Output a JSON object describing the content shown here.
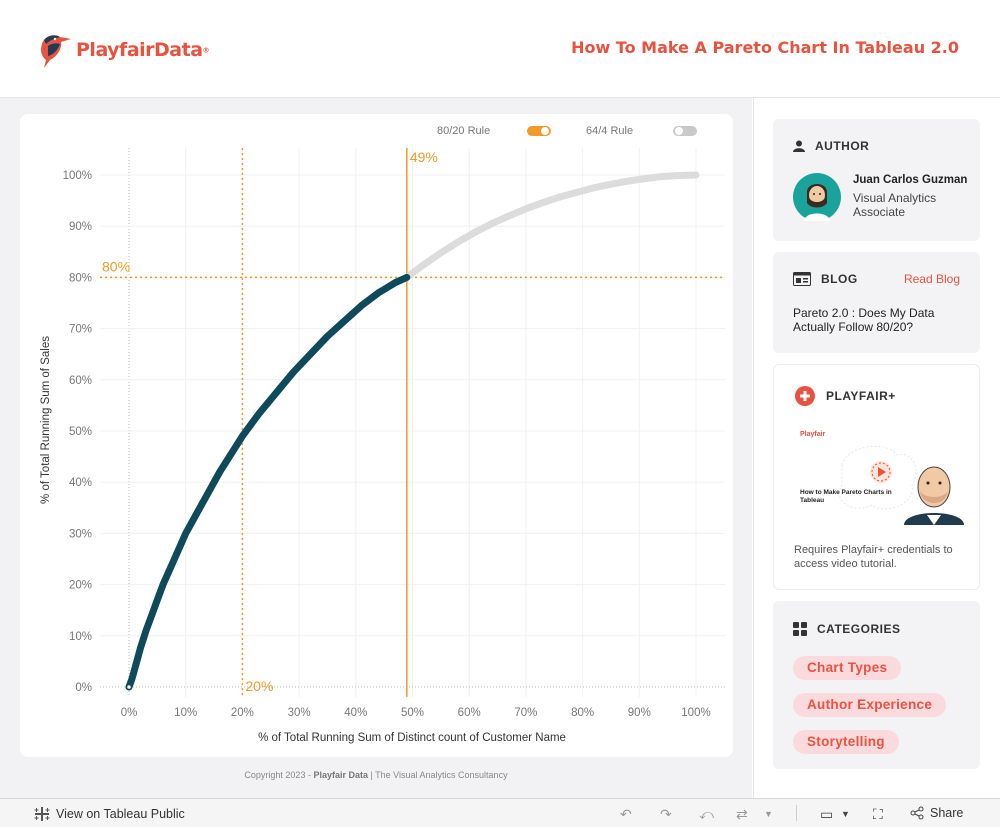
{
  "header": {
    "logo_text": "PlayfairData",
    "logo_mark": "®",
    "title": "How To Make A Pareto Chart In Tableau 2.0"
  },
  "toggles": [
    {
      "label": "80/20 Rule",
      "on": true
    },
    {
      "label": "64/4 Rule",
      "on": false
    }
  ],
  "colors": {
    "accent": "#e8533f",
    "orange": "#f39a26",
    "curve": "#0f4a5a",
    "curve_muted": "#dcdcdc",
    "pill_bg": "#fadadc"
  },
  "chart_data": {
    "type": "line",
    "xlabel": "% of Total Running Sum of Distinct count of Customer Name",
    "ylabel": "% of Total Running Sum of Sales",
    "xlim": [
      0,
      100
    ],
    "ylim": [
      0,
      100
    ],
    "x_ticks": [
      "0%",
      "10%",
      "20%",
      "30%",
      "40%",
      "50%",
      "60%",
      "70%",
      "80%",
      "90%",
      "100%"
    ],
    "y_ticks": [
      "0%",
      "10%",
      "20%",
      "30%",
      "40%",
      "50%",
      "60%",
      "70%",
      "80%",
      "90%",
      "100%"
    ],
    "grid": true,
    "series": [
      {
        "x": [
          0,
          0.5,
          1,
          2,
          3,
          4,
          5,
          6,
          8,
          10,
          12,
          14,
          16,
          18,
          20,
          23,
          26,
          29,
          32,
          35,
          38,
          41,
          44,
          47,
          49
        ],
        "y": [
          0,
          1.5,
          3.5,
          7.5,
          11,
          14,
          17,
          20,
          25,
          30,
          34,
          38,
          42,
          45.5,
          49,
          53.5,
          57.5,
          61.5,
          65,
          68.5,
          71.5,
          74.5,
          77,
          79,
          80
        ],
        "highlighted": true
      },
      {
        "x": [
          49,
          52,
          55,
          58,
          61,
          64,
          67,
          70,
          73,
          76,
          79,
          82,
          85,
          88,
          91,
          94,
          97,
          100
        ],
        "y": [
          80,
          82.5,
          84.8,
          86.9,
          88.8,
          90.5,
          92,
          93.4,
          94.6,
          95.7,
          96.6,
          97.5,
          98.2,
          98.8,
          99.3,
          99.7,
          99.9,
          100
        ],
        "highlighted": false
      }
    ],
    "reference_lines": [
      {
        "axis": "y",
        "value": 80,
        "label": "80%",
        "style": "dotted"
      },
      {
        "axis": "x",
        "value": 20,
        "label": "20%",
        "style": "dotted"
      },
      {
        "axis": "x",
        "value": 49,
        "label": "49%",
        "style": "solid"
      }
    ]
  },
  "copyright": {
    "prefix": "Copyright 2023 - ",
    "brand": "Playfair Data",
    "suffix": " | The Visual Analytics Consultancy"
  },
  "author": {
    "heading": "AUTHOR",
    "name": "Juan Carlos Guzman",
    "role": "Visual Analytics Associate"
  },
  "blog": {
    "heading": "BLOG",
    "link": "Read Blog",
    "title": "Pareto 2.0 : Does My Data Actually Follow 80/20?"
  },
  "playfair_plus": {
    "heading": "PLAYFAIR+",
    "thumb_logo": "Playfair",
    "thumb_title": "How to Make Pareto Charts in Tableau",
    "note": "Requires Playfair+ credentials to access video tutorial."
  },
  "categories": {
    "heading": "CATEGORIES",
    "items": [
      "Chart Types",
      "Author Experience",
      "Storytelling"
    ]
  },
  "footer": {
    "view_label": "View on Tableau Public",
    "share_label": "Share"
  }
}
